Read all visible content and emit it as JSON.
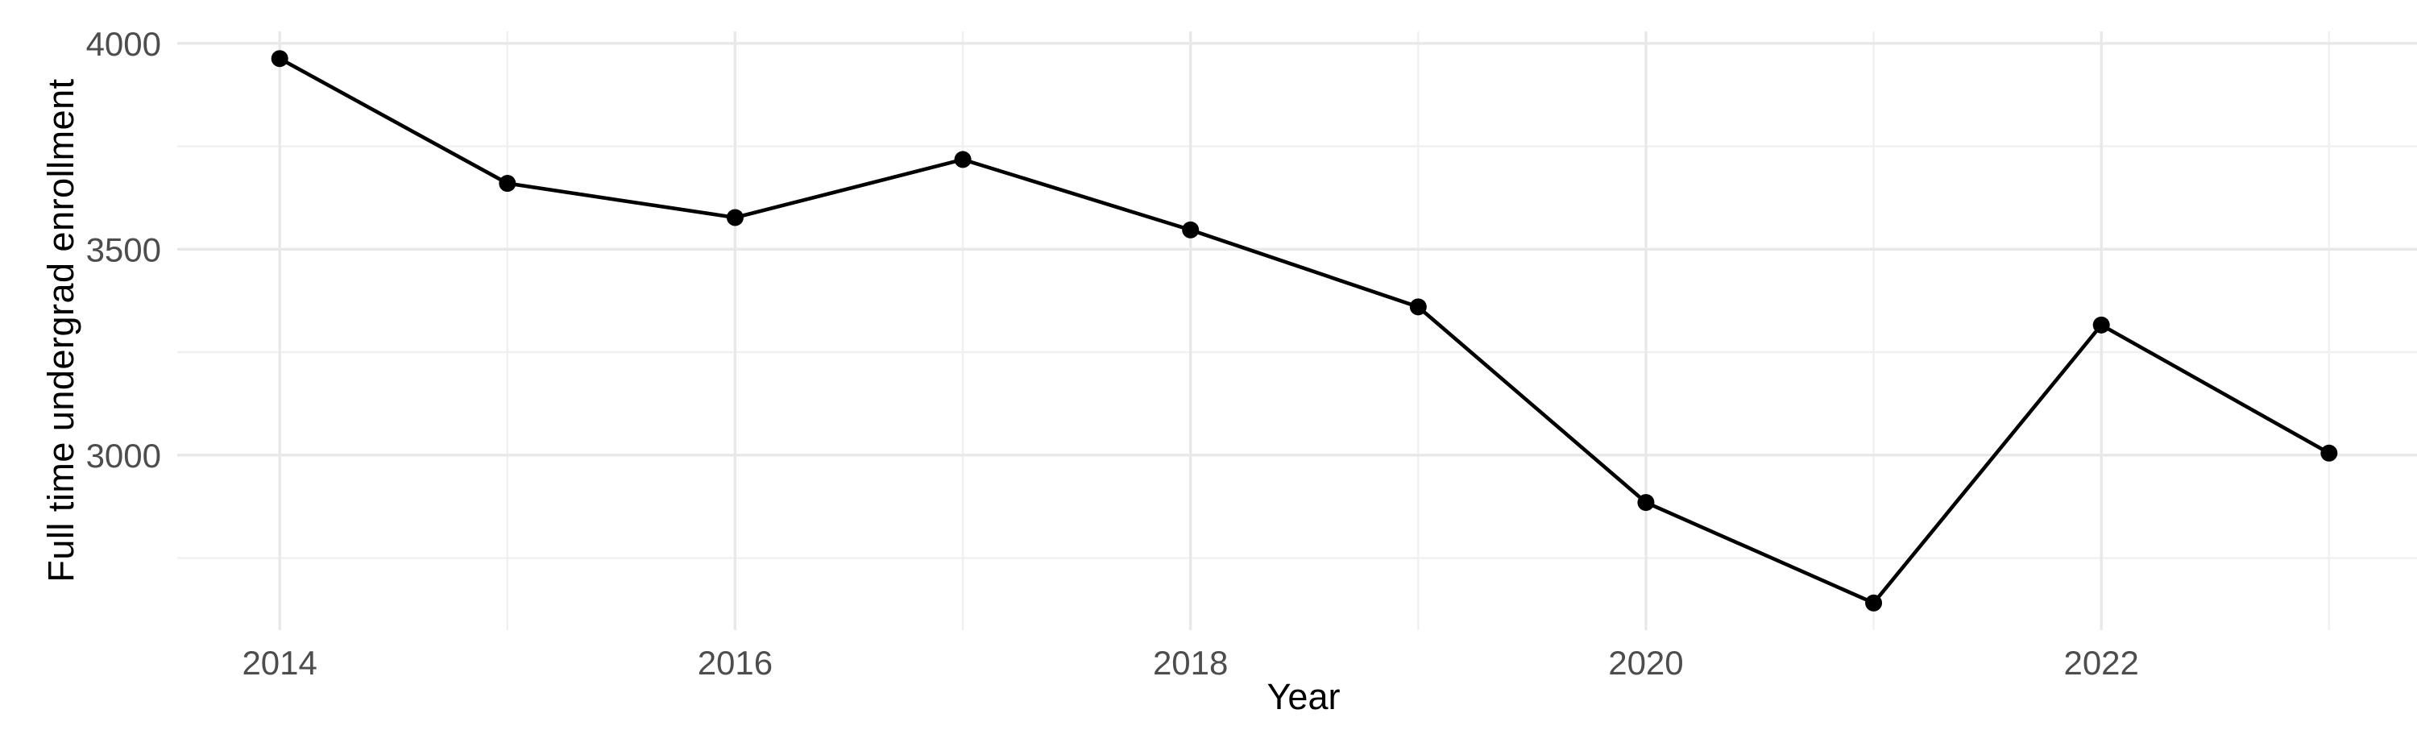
{
  "chart_data": {
    "type": "line",
    "title": "",
    "xlabel": "Year",
    "ylabel": "Full time undergrad enrollment",
    "series": [
      {
        "name": "Full time undergrad enrollment",
        "x": [
          2014,
          2015,
          2016,
          2017,
          2018,
          2019,
          2020,
          2021,
          2022,
          2023
        ],
        "values": [
          3963,
          3660,
          3577,
          3718,
          3547,
          3360,
          2885,
          2641,
          3316,
          3005
        ]
      }
    ],
    "xlim": [
      2013.55,
      2023.45
    ],
    "ylim": [
      2575,
      4029
    ],
    "x_tick_values": [
      2014,
      2016,
      2018,
      2020,
      2022
    ],
    "x_tick_labels": [
      "2014",
      "2016",
      "2018",
      "2020",
      "2022"
    ],
    "x_minor_tick_values": [
      2015,
      2017,
      2019,
      2021,
      2023
    ],
    "y_tick_values": [
      4000,
      3500,
      3000
    ],
    "y_tick_labels": [
      "4000",
      "3500",
      "3000"
    ],
    "y_minor_tick_values": [
      3750,
      3250,
      2750
    ],
    "grid": "on",
    "legend": "none",
    "marker": "filled-circle",
    "colors": {
      "line": "#000000",
      "point": "#000000",
      "grid_major": "#e8e8e8",
      "grid_minor": "#f0f0f0",
      "tick_label": "#4d4d4d",
      "axis_title": "#000000",
      "background": "#ffffff"
    }
  }
}
